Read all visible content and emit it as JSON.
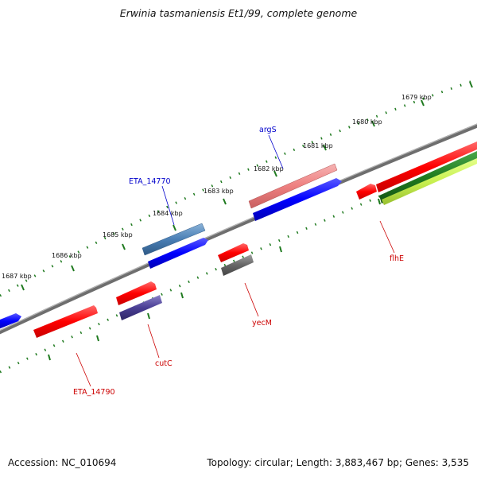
{
  "title": "Erwinia tasmaniensis Et1/99, complete genome",
  "accession": "Accession: NC_010694",
  "summary": "Topology: circular; Length: 3,883,467 bp; Genes: 3,535",
  "colors": {
    "backbone": "#7f7f7f",
    "tick": "#1f7a1f",
    "forward_label": "#0000cc",
    "reverse_label": "#cc0000"
  },
  "ruler": [
    "1679 kbp",
    "1680 kbp",
    "1681 kbp",
    "1682 kbp",
    "1683 kbp",
    "1684 kbp",
    "1685 kbp",
    "1686 kbp",
    "1687 kbp"
  ],
  "gene_labels": {
    "argS": "argS",
    "eta14770": "ETA_14770",
    "flhE": "flhE",
    "yecM": "yecM",
    "cutC": "cutC",
    "eta14790": "ETA_14790"
  }
}
